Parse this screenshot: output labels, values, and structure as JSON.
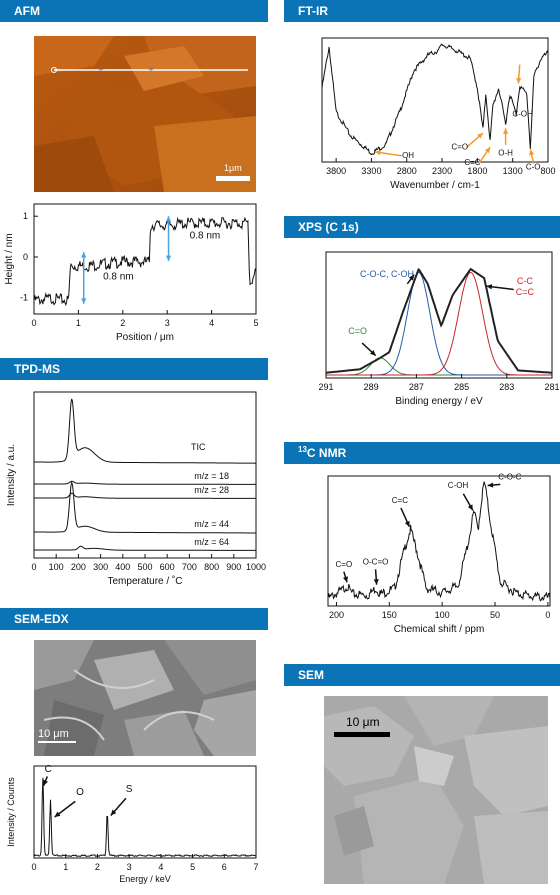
{
  "sections": {
    "afm": "AFM",
    "ftir": "FT-IR",
    "xps": "XPS (C 1s)",
    "tpd": "TPD-MS",
    "nmr_sup": "13",
    "nmr": "C NMR",
    "semedx": "SEM-EDX",
    "sem": "SEM"
  },
  "afm_image": {
    "scale_label": "1μm"
  },
  "sem_edx_image": {
    "scale_label": "10 μm"
  },
  "sem_image": {
    "scale_label": "10 μm"
  },
  "colors": {
    "header": "#0a74b7",
    "annotation_arrow": "#f39a2c",
    "height_arrow": "#4aa3df",
    "xps_green": "#2e8b3a",
    "xps_blue": "#1f5fa8",
    "xps_red": "#c62828"
  },
  "chart_data": [
    {
      "id": "afm-height",
      "type": "line",
      "xlabel": "Position / μm",
      "ylabel": "Height / nm",
      "xlim": [
        0,
        5
      ],
      "ylim": [
        -1.4,
        1.3
      ],
      "xticks": [
        "0",
        "1",
        "2",
        "3",
        "4",
        "5"
      ],
      "yticks": [
        "-1",
        "0",
        "1"
      ],
      "annotations": [
        "0.8 nm",
        "0.8 nm"
      ],
      "x": [
        0.0,
        0.4,
        0.78,
        0.82,
        1.2,
        1.6,
        2.0,
        2.4,
        2.6,
        2.62,
        3.0,
        3.5,
        4.0,
        4.5,
        4.82,
        4.86,
        5.0
      ],
      "y": [
        -1.0,
        -0.95,
        -1.0,
        -0.15,
        -0.15,
        -0.1,
        -0.05,
        -0.05,
        -0.05,
        0.85,
        0.85,
        0.9,
        0.9,
        0.9,
        0.9,
        -0.6,
        -0.3
      ]
    },
    {
      "id": "ftir",
      "type": "line",
      "xlabel": "Wavenumber / cm-1",
      "xlim": [
        4000,
        800
      ],
      "xticks": [
        "3800",
        "3300",
        "2800",
        "2300",
        "1800",
        "1300",
        "800"
      ],
      "annotations": [
        "-OH",
        "C=O",
        "C=C",
        "O-H",
        "C-OH",
        "C-O"
      ],
      "x": [
        4000,
        3900,
        3800,
        3600,
        3400,
        3300,
        3100,
        2900,
        2700,
        2500,
        2350,
        2300,
        2100,
        1900,
        1800,
        1720,
        1680,
        1620,
        1580,
        1500,
        1400,
        1340,
        1250,
        1200,
        1100,
        1050,
        1000,
        900,
        800
      ],
      "y": [
        0.6,
        0.95,
        0.4,
        0.2,
        0.1,
        0.05,
        0.12,
        0.4,
        0.75,
        0.88,
        0.92,
        0.97,
        0.92,
        0.85,
        0.6,
        0.25,
        0.55,
        0.15,
        0.45,
        0.6,
        0.3,
        0.55,
        0.38,
        0.62,
        0.55,
        0.1,
        0.7,
        0.85,
        0.9
      ]
    },
    {
      "id": "xps-c1s",
      "type": "line",
      "xlabel": "Binding energy / eV",
      "xlim": [
        291,
        281
      ],
      "xticks": [
        "291",
        "289",
        "287",
        "285",
        "283",
        "281"
      ],
      "annotations": [
        "C-O-C, C-OH",
        "C=O",
        "C-C",
        "C=C"
      ],
      "series": [
        {
          "component": "total",
          "x": [
            291,
            289.5,
            288.6,
            288.2,
            287.6,
            286.9,
            286.5,
            285.9,
            285.4,
            284.6,
            284.0,
            283.4,
            282.5,
            281
          ],
          "y": [
            0.02,
            0.05,
            0.15,
            0.2,
            0.55,
            0.93,
            0.8,
            0.43,
            0.7,
            0.93,
            0.85,
            0.3,
            0.04,
            0.02
          ]
        },
        {
          "component": "C=O",
          "center": 288.6,
          "amplitude": 0.15,
          "width": 0.6
        },
        {
          "component": "C-O-C, C-OH",
          "center": 286.9,
          "amplitude": 0.9,
          "width": 0.7
        },
        {
          "component": "C-C, C=C",
          "center": 284.6,
          "amplitude": 0.9,
          "width": 0.75
        }
      ]
    },
    {
      "id": "tpd-ms",
      "type": "line",
      "xlabel": "Temperature / ˚C",
      "ylabel": "Intensity / a.u.",
      "xlim": [
        0,
        1000
      ],
      "xticks": [
        "0",
        "100",
        "200",
        "300",
        "400",
        "500",
        "600",
        "700",
        "800",
        "900",
        "1000"
      ],
      "series": [
        {
          "name": "TIC",
          "peak": 170,
          "height": 1.0,
          "shoulder": 0.25
        },
        {
          "name": "m/z = 18",
          "peak": 170,
          "height": 0.12,
          "shoulder": 0.05
        },
        {
          "name": "m/z = 28",
          "peak": 170,
          "height": 0.2,
          "shoulder": 0.06
        },
        {
          "name": "m/z = 44",
          "peak": 170,
          "height": 0.95,
          "shoulder": 0.12
        },
        {
          "name": "m/z = 64",
          "peak": 210,
          "height": 0.15,
          "shoulder": 0.08
        }
      ]
    },
    {
      "id": "c13-nmr",
      "type": "line",
      "xlabel": "Chemical shift / ppm",
      "xlim": [
        200,
        0
      ],
      "xticks": [
        "200",
        "150",
        "100",
        "50",
        "0"
      ],
      "annotations": [
        "C=O",
        "O-C=O",
        "C=C",
        "C-OH",
        "C-O-C"
      ],
      "x": [
        205,
        195,
        190,
        185,
        170,
        163,
        158,
        145,
        135,
        130,
        125,
        115,
        100,
        85,
        75,
        70,
        66,
        62,
        60,
        55,
        45,
        30,
        15,
        0
      ],
      "y": [
        0.03,
        0.08,
        0.12,
        0.05,
        0.04,
        0.1,
        0.05,
        0.1,
        0.45,
        0.6,
        0.45,
        0.1,
        0.06,
        0.12,
        0.5,
        0.75,
        0.6,
        0.9,
        1.0,
        0.7,
        0.15,
        0.06,
        0.03,
        0.02
      ]
    },
    {
      "id": "edx",
      "type": "line",
      "xlabel": "Energy / keV",
      "ylabel": "Intensity / Counts",
      "xlim": [
        0,
        7
      ],
      "xticks": [
        "0",
        "1",
        "2",
        "3",
        "4",
        "5",
        "6",
        "7"
      ],
      "annotations": [
        "C",
        "O",
        "S"
      ],
      "peaks": [
        {
          "x": 0.28,
          "y": 1.0
        },
        {
          "x": 0.52,
          "y": 0.72
        },
        {
          "x": 2.31,
          "y": 0.55
        }
      ]
    }
  ]
}
